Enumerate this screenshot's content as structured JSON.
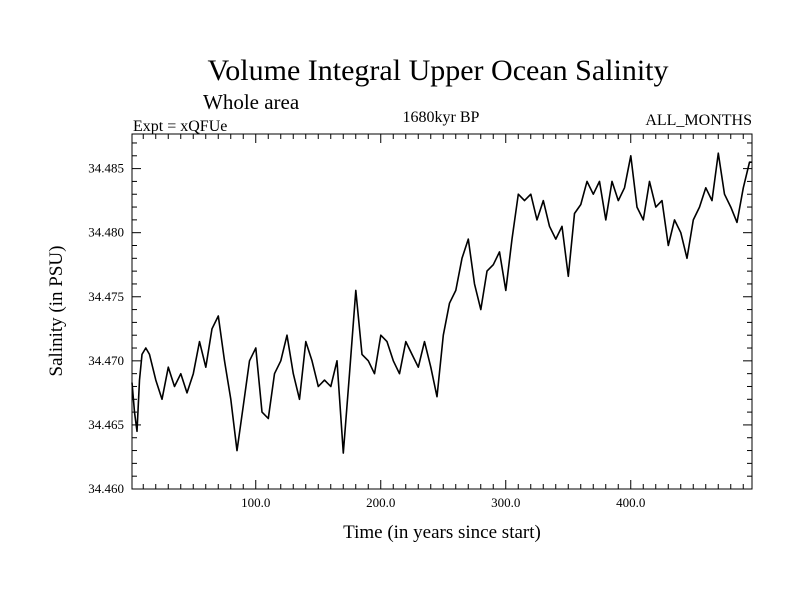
{
  "chart_data": {
    "type": "line",
    "title": "Volume Integral Upper Ocean Salinity",
    "subtitle": "Whole area",
    "header_left": "Expt = xQFUe",
    "header_center": "1680kyr BP",
    "header_right": "ALL_MONTHS",
    "xlabel": "Time (in years since start)",
    "ylabel": "Salinity (in PSU)",
    "xlim": [
      1,
      497
    ],
    "ylim": [
      34.46,
      34.4877
    ],
    "x_ticks": [
      {
        "value": 100,
        "label": "100.0"
      },
      {
        "value": 200,
        "label": "200.0"
      },
      {
        "value": 300,
        "label": "300.0"
      },
      {
        "value": 400,
        "label": "400.0"
      }
    ],
    "y_ticks": [
      {
        "value": 34.46,
        "label": "34.460"
      },
      {
        "value": 34.465,
        "label": "34.465"
      },
      {
        "value": 34.47,
        "label": "34.470"
      },
      {
        "value": 34.475,
        "label": "34.475"
      },
      {
        "value": 34.48,
        "label": "34.480"
      },
      {
        "value": 34.485,
        "label": "34.485"
      }
    ],
    "series": [
      {
        "name": "salinity",
        "x": [
          1,
          3,
          5,
          7,
          9,
          12,
          15,
          20,
          25,
          30,
          35,
          40,
          45,
          50,
          55,
          60,
          65,
          70,
          75,
          80,
          85,
          90,
          95,
          100,
          105,
          110,
          115,
          120,
          125,
          130,
          135,
          140,
          145,
          150,
          155,
          160,
          165,
          170,
          175,
          180,
          185,
          190,
          195,
          200,
          205,
          210,
          215,
          220,
          225,
          230,
          235,
          240,
          245,
          250,
          255,
          260,
          265,
          270,
          275,
          280,
          285,
          290,
          295,
          300,
          305,
          310,
          315,
          320,
          325,
          330,
          335,
          340,
          345,
          350,
          355,
          360,
          365,
          370,
          375,
          380,
          385,
          390,
          395,
          400,
          405,
          410,
          415,
          420,
          425,
          430,
          435,
          440,
          445,
          450,
          455,
          460,
          465,
          470,
          475,
          480,
          485,
          490,
          495,
          497
        ],
        "y": [
          34.4683,
          34.466,
          34.4645,
          34.4685,
          34.4705,
          34.471,
          34.4705,
          34.4685,
          34.467,
          34.4695,
          34.468,
          34.469,
          34.4675,
          34.469,
          34.4715,
          34.4695,
          34.4725,
          34.4735,
          34.47,
          34.467,
          34.463,
          34.4665,
          34.47,
          34.471,
          34.466,
          34.4655,
          34.469,
          34.47,
          34.472,
          34.469,
          34.467,
          34.4715,
          34.47,
          34.468,
          34.4685,
          34.468,
          34.47,
          34.4628,
          34.469,
          34.4755,
          34.4705,
          34.47,
          34.469,
          34.472,
          34.4715,
          34.47,
          34.469,
          34.4715,
          34.4705,
          34.4695,
          34.4715,
          34.4695,
          34.4672,
          34.472,
          34.4745,
          34.4755,
          34.478,
          34.4795,
          34.476,
          34.474,
          34.477,
          34.4775,
          34.4785,
          34.4755,
          34.4795,
          34.483,
          34.4825,
          34.483,
          34.481,
          34.4825,
          34.4805,
          34.4795,
          34.4805,
          34.4766,
          34.4815,
          34.4822,
          34.484,
          34.483,
          34.484,
          34.481,
          34.484,
          34.4825,
          34.4835,
          34.486,
          34.482,
          34.481,
          34.484,
          34.482,
          34.4825,
          34.479,
          34.481,
          34.48,
          34.478,
          34.481,
          34.482,
          34.4835,
          34.4825,
          34.4862,
          34.483,
          34.482,
          34.4808,
          34.4835,
          34.4855,
          34.4855
        ]
      }
    ]
  }
}
